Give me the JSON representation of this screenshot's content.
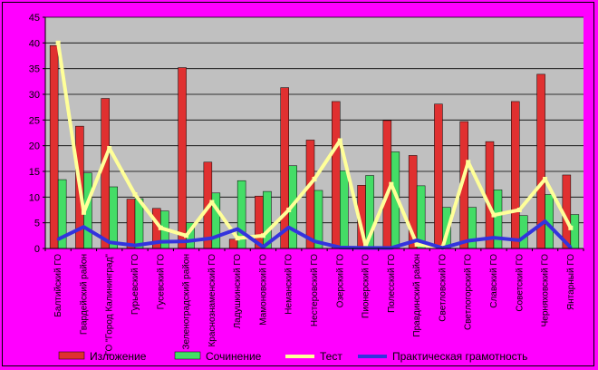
{
  "chart_data": {
    "type": "bar",
    "title": "",
    "xlabel": "",
    "ylabel": "",
    "ylim": [
      0,
      45
    ],
    "yticks": [
      0,
      5,
      10,
      15,
      20,
      25,
      30,
      35,
      40,
      45
    ],
    "grid": true,
    "legend": "bottom",
    "categories": [
      "Балтийский  ГО",
      "Гвардейский район",
      "ГО \"Город Калининград\"",
      "Гурьевский ГО",
      "Гусевский ГО",
      "Зеленоградский район",
      "Краснознаменский ГО",
      "Ладушкинский ГО",
      "Мамоновский ГО",
      "Неманский ГО",
      "Нестеровский ГО",
      "Озерский ГО",
      "Пионерский ГО",
      "Полесский ГО",
      "Правдинский район",
      "Светловский ГО",
      "Светлогорский ГО",
      "Славский  ГО",
      "Советский ГО",
      "Черняховский  ГО",
      "Янтарный  ГО"
    ],
    "series": [
      {
        "name": "Изложение",
        "kind": "bar",
        "color": "#e03030",
        "values": [
          39.5,
          23.8,
          29.2,
          9.6,
          7.8,
          35.2,
          16.8,
          1.8,
          10.2,
          31.3,
          21.1,
          28.6,
          12.3,
          24.9,
          18.1,
          28.1,
          24.7,
          20.8,
          28.6,
          33.9,
          14.3
        ]
      },
      {
        "name": "Сочинение",
        "kind": "bar",
        "color": "#44dd66",
        "values": [
          13.4,
          14.7,
          12.0,
          9.7,
          7.3,
          5.0,
          10.8,
          13.2,
          11.1,
          16.1,
          11.3,
          15.1,
          14.2,
          18.8,
          12.2,
          8.0,
          8.0,
          11.4,
          6.4,
          10.5,
          6.6
        ]
      },
      {
        "name": "Тест",
        "kind": "line",
        "color": "#ffff99",
        "values": [
          40.0,
          7.0,
          19.5,
          10.5,
          4.0,
          2.5,
          9.0,
          2.0,
          2.5,
          7.5,
          13.5,
          21.0,
          0.5,
          12.5,
          0.8,
          0.2,
          16.8,
          6.5,
          7.5,
          13.5,
          4.0
        ]
      },
      {
        "name": "Практическая грамотность",
        "kind": "line",
        "color": "#3333dd",
        "values": [
          1.8,
          4.2,
          1.2,
          0.6,
          1.3,
          1.4,
          2.0,
          3.8,
          0.3,
          4.1,
          1.4,
          0.2,
          0.1,
          0.1,
          1.6,
          0.1,
          1.5,
          2.1,
          1.6,
          5.3,
          0.2
        ]
      }
    ]
  }
}
